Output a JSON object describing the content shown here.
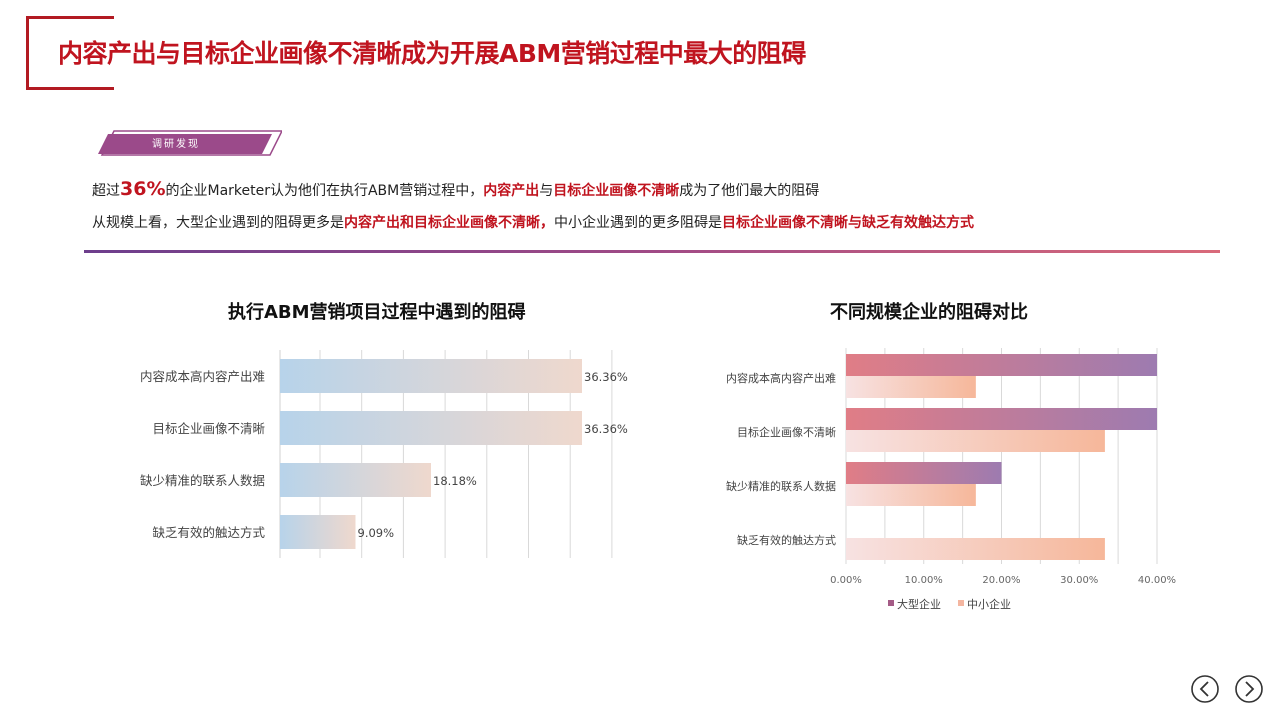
{
  "page": {
    "title": "内容产出与目标企业画像不清晰成为开展ABM营销过程中最大的阻碍",
    "tag": "调研发现"
  },
  "findings": {
    "line1": {
      "p1": "超过",
      "pct": "36%",
      "p2": "的企业Marketer认为他们在执行ABM营销过程中，",
      "hl1": "内容产出",
      "p3": "与",
      "hl2": "目标企业画像不清晰",
      "p4": "成为了他们最大的阻碍"
    },
    "line2": {
      "p1": "从规模上看，大型企业遇到的阻碍更多是",
      "hl1": "内容产出和目标企业画像不清晰，",
      "p2": "中小企业遇到的更多阻碍是",
      "hl2": "目标企业画像不清晰与缺乏有效触达方式"
    }
  },
  "colors": {
    "accent": "#c0141f",
    "tag": "#9b4a8a",
    "large_enterprise": "#a45b86",
    "sme": "#f4b6a0"
  },
  "chart_data": [
    {
      "type": "bar",
      "orientation": "horizontal",
      "title": "执行ABM营销项目过程中遇到的阻碍",
      "categories": [
        "内容成本高内容产出难",
        "目标企业画像不清晰",
        "缺少精准的联系人数据",
        "缺乏有效的触达方式"
      ],
      "values": [
        36.36,
        36.36,
        18.18,
        9.09
      ],
      "value_labels": [
        "36.36%",
        "36.36%",
        "18.18%",
        "9.09%"
      ],
      "xlim": [
        0,
        36.36
      ],
      "grid": true
    },
    {
      "type": "bar",
      "orientation": "horizontal",
      "title": "不同规模企业的阻碍对比",
      "categories": [
        "内容成本高内容产出难",
        "目标企业画像不清晰",
        "缺少精准的联系人数据",
        "缺乏有效的触达方式"
      ],
      "series": [
        {
          "name": "大型企业",
          "values": [
            40,
            40,
            20,
            0
          ]
        },
        {
          "name": "中小企业",
          "values": [
            16.7,
            33.3,
            16.7,
            33.3
          ]
        }
      ],
      "xlim": [
        0,
        40
      ],
      "ticks": [
        "0.00%",
        "10.00%",
        "20.00%",
        "30.00%",
        "40.00%"
      ],
      "grid": true,
      "legend": "bottom"
    }
  ]
}
